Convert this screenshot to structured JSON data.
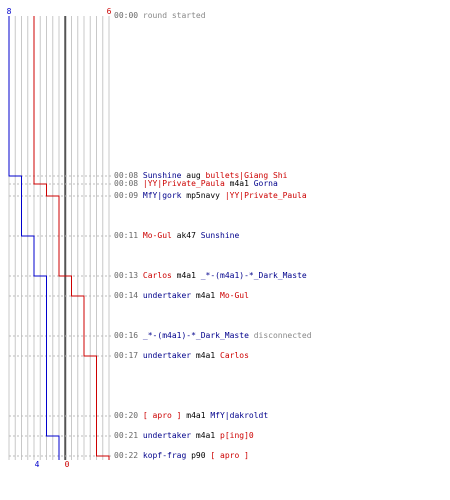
{
  "colors": {
    "team_blue": "#0000cc",
    "team_red": "#cc0000",
    "grid": "#c8c8c8",
    "center_line": "#555555",
    "event_dash": "#bbbbbb",
    "time": "#666666",
    "name_blue": "#00008b",
    "name_red": "#cc0000",
    "neutral": "#000000",
    "info": "#888888"
  },
  "scores": {
    "blue_start": "8",
    "red_start": "6",
    "blue_end": "4",
    "red_end": "0"
  },
  "team_counts": {
    "blue": [
      8,
      7,
      7,
      7,
      6,
      5,
      5,
      5,
      5,
      5,
      4,
      4,
      4
    ],
    "red": [
      6,
      6,
      5,
      4,
      4,
      3,
      2,
      2,
      1,
      1,
      1,
      0,
      0
    ]
  },
  "events": [
    {
      "time": "00:00",
      "parts": [
        {
          "text": "round started",
          "role": "info"
        }
      ]
    },
    {
      "time": "00:08",
      "parts": [
        {
          "text": "Sunshine",
          "role": "blue"
        },
        {
          "text": " aug ",
          "role": "neutral"
        },
        {
          "text": "bullets|Giang Shi",
          "role": "red"
        }
      ]
    },
    {
      "time": "00:08",
      "parts": [
        {
          "text": "|YY|Private_Paula",
          "role": "red"
        },
        {
          "text": " m4a1 ",
          "role": "neutral"
        },
        {
          "text": "Gorna",
          "role": "blue"
        }
      ]
    },
    {
      "time": "00:09",
      "parts": [
        {
          "text": "MfY|gork",
          "role": "blue"
        },
        {
          "text": " mp5navy ",
          "role": "neutral"
        },
        {
          "text": "|YY|Private_Paula",
          "role": "red"
        }
      ]
    },
    {
      "time": "00:11",
      "parts": [
        {
          "text": "Mo-Gul",
          "role": "red"
        },
        {
          "text": " ak47 ",
          "role": "neutral"
        },
        {
          "text": "Sunshine",
          "role": "blue"
        }
      ]
    },
    {
      "time": "00:13",
      "parts": [
        {
          "text": "Carlos",
          "role": "red"
        },
        {
          "text": " m4a1 ",
          "role": "neutral"
        },
        {
          "text": "_*-(m4a1)-*_Dark_Maste",
          "role": "blue"
        }
      ]
    },
    {
      "time": "00:14",
      "parts": [
        {
          "text": "undertaker",
          "role": "blue"
        },
        {
          "text": " m4a1 ",
          "role": "neutral"
        },
        {
          "text": "Mo-Gul",
          "role": "red"
        }
      ]
    },
    {
      "time": "00:16",
      "parts": [
        {
          "text": "_*-(m4a1)-*_Dark_Maste",
          "role": "blue"
        },
        {
          "text": " disconnected",
          "role": "info"
        }
      ]
    },
    {
      "time": "00:17",
      "parts": [
        {
          "text": "undertaker",
          "role": "blue"
        },
        {
          "text": " m4a1 ",
          "role": "neutral"
        },
        {
          "text": "Carlos",
          "role": "red"
        }
      ]
    },
    {
      "time": "00:20",
      "parts": [
        {
          "text": "[ apro ]",
          "role": "red"
        },
        {
          "text": " m4a1 ",
          "role": "neutral"
        },
        {
          "text": "MfY|dakroldt",
          "role": "blue"
        }
      ]
    },
    {
      "time": "00:21",
      "parts": [
        {
          "text": "undertaker",
          "role": "blue"
        },
        {
          "text": " m4a1 ",
          "role": "neutral"
        },
        {
          "text": "p[ing]0",
          "role": "red"
        }
      ]
    },
    {
      "time": "00:22",
      "parts": [
        {
          "text": "kopf-frag",
          "role": "blue"
        },
        {
          "text": " p90 ",
          "role": "neutral"
        },
        {
          "text": "[ apro ]",
          "role": "red"
        }
      ]
    }
  ]
}
